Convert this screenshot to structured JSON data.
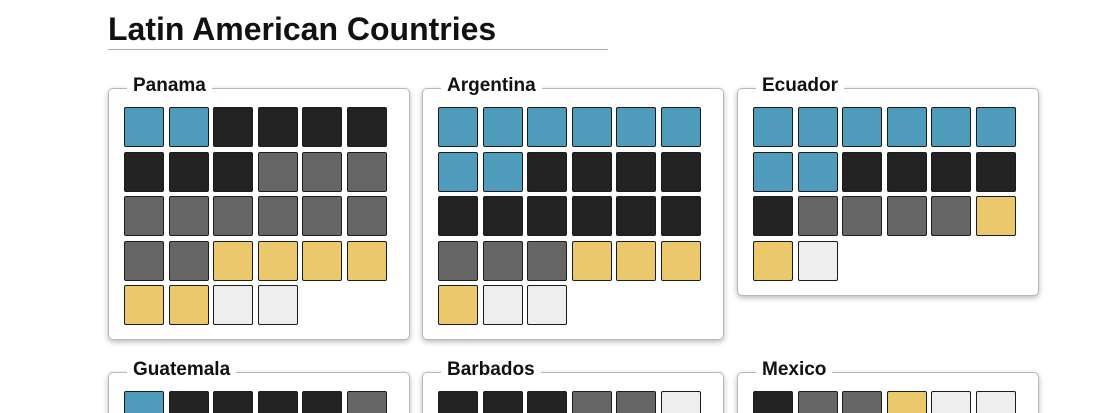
{
  "title": "Latin American Countries",
  "colors": {
    "blue": "#4f9bbb",
    "black": "#232323",
    "gray": "#666666",
    "yellow": "#ebc86b",
    "white": "#eeeeee",
    "card_border": "#b8b8b8"
  },
  "countries": [
    {
      "name": "Panama",
      "squares": [
        "blue",
        "blue",
        "black",
        "black",
        "black",
        "black",
        "black",
        "black",
        "black",
        "gray",
        "gray",
        "gray",
        "gray",
        "gray",
        "gray",
        "gray",
        "gray",
        "gray",
        "gray",
        "gray",
        "yellow",
        "yellow",
        "yellow",
        "yellow",
        "yellow",
        "yellow",
        "white",
        "white"
      ]
    },
    {
      "name": "Argentina",
      "squares": [
        "blue",
        "blue",
        "blue",
        "blue",
        "blue",
        "blue",
        "blue",
        "blue",
        "black",
        "black",
        "black",
        "black",
        "black",
        "black",
        "black",
        "black",
        "black",
        "black",
        "gray",
        "gray",
        "gray",
        "yellow",
        "yellow",
        "yellow",
        "yellow",
        "white",
        "white"
      ]
    },
    {
      "name": "Ecuador",
      "squares": [
        "blue",
        "blue",
        "blue",
        "blue",
        "blue",
        "blue",
        "blue",
        "blue",
        "black",
        "black",
        "black",
        "black",
        "black",
        "gray",
        "gray",
        "gray",
        "gray",
        "yellow",
        "yellow",
        "white"
      ]
    },
    {
      "name": "Guatemala",
      "squares": [
        "blue",
        "black",
        "black",
        "black",
        "black",
        "gray"
      ]
    },
    {
      "name": "Barbados",
      "squares": [
        "black",
        "black",
        "black",
        "gray",
        "gray",
        "white"
      ]
    },
    {
      "name": "Mexico",
      "squares": [
        "black",
        "gray",
        "gray",
        "yellow",
        "white",
        "white"
      ]
    }
  ]
}
